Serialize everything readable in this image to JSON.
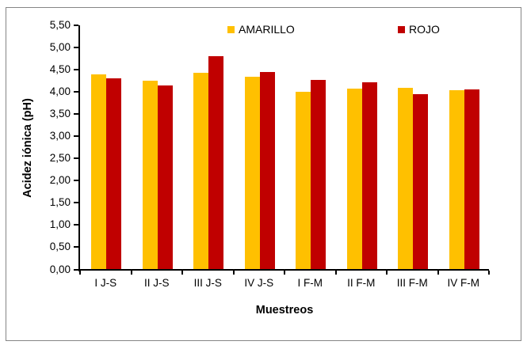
{
  "figure": {
    "background_color": "#FFFFFF",
    "border_color": "#858585",
    "axis_color": "#000000",
    "text_color": "#000000"
  },
  "chart_data": {
    "type": "bar",
    "title": "",
    "categories": [
      "I J-S",
      "II J-S",
      "III J-S",
      "IV J-S",
      "I F-M",
      "II F-M",
      "III F-M",
      "IV F-M"
    ],
    "series": [
      {
        "name": "AMARILLO",
        "color": "#FFC000",
        "values": [
          4.38,
          4.25,
          4.43,
          4.33,
          4.0,
          4.07,
          4.09,
          4.03
        ]
      },
      {
        "name": "ROJO",
        "color": "#C00000",
        "values": [
          4.3,
          4.14,
          4.79,
          4.44,
          4.26,
          4.21,
          3.95,
          4.05
        ]
      }
    ],
    "xlabel": "Muestreos",
    "ylabel": "Acidez iónica (pH)",
    "ylim": [
      0,
      5.5
    ],
    "ytick_step": 0.5,
    "ytick_labels": [
      "0,00",
      "0,50",
      "1,00",
      "1,50",
      "2,00",
      "2,50",
      "3,00",
      "3,50",
      "4,00",
      "4,50",
      "5,00",
      "5,50"
    ],
    "grid": false,
    "legend_position": "top",
    "decimal_separator": ","
  }
}
